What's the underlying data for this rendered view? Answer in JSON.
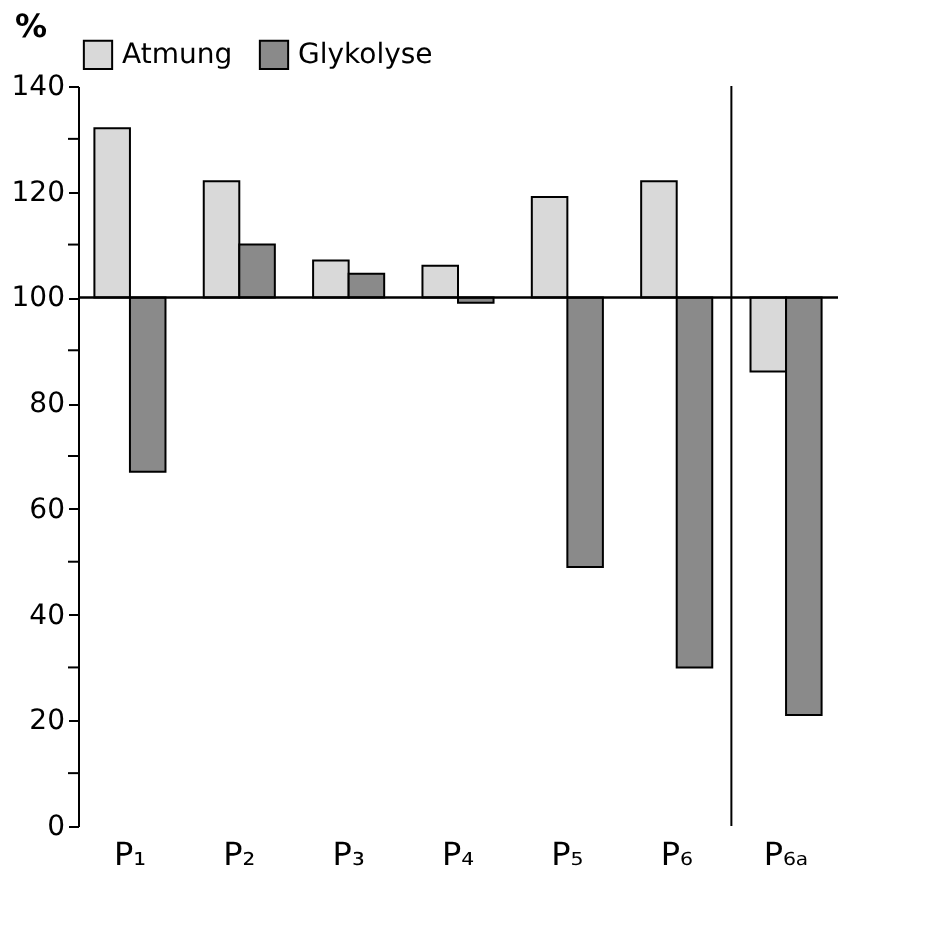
{
  "chart_data": {
    "type": "bar",
    "ylabel": "%",
    "categories": [
      "P₁",
      "P₂",
      "P₃",
      "P₄",
      "P₅",
      "P₆",
      "P₆ₐ"
    ],
    "series": [
      {
        "name": "Atmung",
        "color": "#d9d9d9",
        "base": [
          100,
          100,
          100,
          100,
          100,
          100,
          100
        ],
        "values": [
          32,
          22,
          7,
          6,
          19,
          22,
          -14
        ]
      },
      {
        "name": "Glykolyse",
        "color": "#8a8a8a",
        "base": [
          100,
          100,
          100,
          100,
          100,
          100,
          100
        ],
        "values": [
          -33,
          10,
          4.5,
          -1,
          -51,
          -70,
          -79
        ]
      }
    ],
    "ylim": [
      0,
      140
    ],
    "yticks": [
      0,
      {
        "value": 10,
        "label": null
      },
      20,
      {
        "value": 30,
        "label": null
      },
      40,
      {
        "value": 50,
        "label": null
      },
      60,
      {
        "value": 70,
        "label": null
      },
      80,
      {
        "value": 90,
        "label": null
      },
      100,
      {
        "value": 110,
        "label": null
      },
      120,
      {
        "value": 130,
        "label": null
      },
      140
    ],
    "ref_lines": [
      {
        "axis": "y",
        "value": 100,
        "color": "#000000"
      },
      {
        "axis": "x",
        "value": "P₆ₐ",
        "color": "#000000"
      }
    ],
    "legend": "top",
    "grid": false
  }
}
